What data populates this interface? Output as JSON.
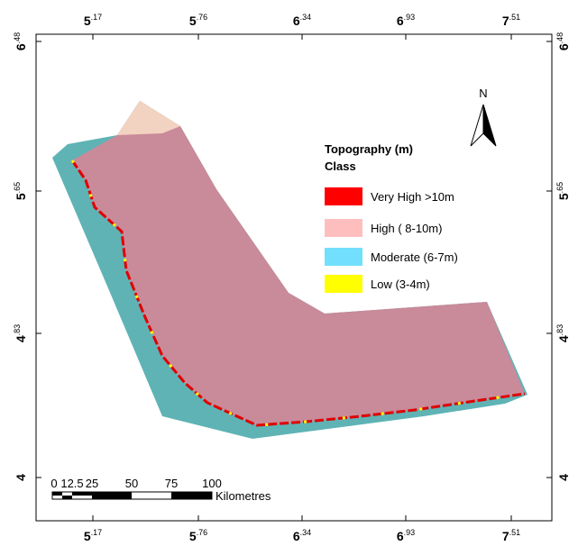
{
  "map": {
    "top_ticks": [
      {
        "int": "5",
        "dec": ".17"
      },
      {
        "int": "5",
        "dec": ".76"
      },
      {
        "int": "6",
        "dec": ".34"
      },
      {
        "int": "6",
        "dec": ".93"
      },
      {
        "int": "7",
        "dec": ".51"
      }
    ],
    "side_ticks": [
      {
        "int": "6",
        "dec": ".48"
      },
      {
        "int": "5",
        "dec": ".65"
      },
      {
        "int": "4",
        "dec": ".83"
      },
      {
        "int": "4",
        "dec": ""
      }
    ],
    "legend": {
      "title": "Topography (m)",
      "subtitle": "Class",
      "items": [
        {
          "label": "Very High >10m",
          "color": "#ff0000"
        },
        {
          "label": "High ( 8-10m)",
          "color": "#ffbebe"
        },
        {
          "label": "Moderate (6-7m)",
          "color": "#73dfff"
        },
        {
          "label": "Low (3-4m)",
          "color": "#ffff00"
        }
      ]
    },
    "north": "N",
    "scale": {
      "labels": [
        "0",
        "12.5",
        "25",
        "50",
        "75",
        "100"
      ],
      "unit": "Kilometres"
    }
  }
}
